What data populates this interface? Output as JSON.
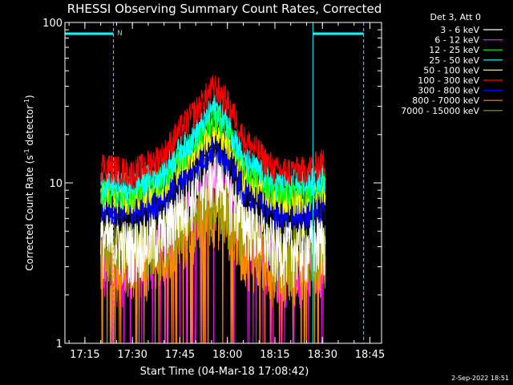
{
  "chart_data": {
    "type": "line",
    "title": "RHESSI Observing Summary Count Rates, Corrected",
    "xlabel": "Start Time (04-Mar-18 17:08:42)",
    "ylabel_main": "Corrected Count Rate (s",
    "ylabel_sup1": "-1",
    "ylabel_mid": " detector",
    "ylabel_sup2": "-1",
    "ylabel_end": ")",
    "yscale": "log",
    "ylim": [
      1,
      100
    ],
    "xlim": [
      "17:08:42",
      "18:48:40"
    ],
    "x_ticks": [
      "17:15",
      "17:30",
      "17:45",
      "18:00",
      "18:15",
      "18:30",
      "18:45"
    ],
    "y_ticks": [
      "1",
      "10",
      "100"
    ],
    "legend_header": "Det 3, Att 0",
    "legend_position": "top-right",
    "timestamp": "2-Sep-2022 18:51",
    "night_marker": "N",
    "series": [
      {
        "name": "3 - 6 keV",
        "color": "#ffffff",
        "times": [
          "17:20",
          "17:30",
          "17:40",
          "17:50",
          "17:56",
          "18:00",
          "18:05",
          "18:15",
          "18:25",
          "18:30"
        ],
        "values": [
          4.5,
          4.0,
          5.0,
          9.0,
          12.0,
          9.0,
          6.0,
          4.0,
          4.0,
          4.5
        ]
      },
      {
        "name": "6 - 12 keV",
        "color": "#ff00ff",
        "times": [
          "17:20",
          "17:30",
          "17:40",
          "17:50",
          "17:56",
          "18:00",
          "18:05",
          "18:15",
          "18:25",
          "18:30"
        ],
        "values": [
          3.0,
          3.0,
          4.0,
          7.0,
          9.5,
          8.0,
          5.0,
          3.0,
          3.0,
          3.5
        ]
      },
      {
        "name": "12 - 25 keV",
        "color": "#00ff00",
        "times": [
          "17:20",
          "17:30",
          "17:40",
          "17:50",
          "17:56",
          "18:00",
          "18:05",
          "18:15",
          "18:25",
          "18:30"
        ],
        "values": [
          9.0,
          8.5,
          11.0,
          18.0,
          27.0,
          22.0,
          13.0,
          9.0,
          9.0,
          10.0
        ]
      },
      {
        "name": "25 - 50 keV",
        "color": "#00ffff",
        "times": [
          "17:20",
          "17:30",
          "17:40",
          "17:50",
          "17:56",
          "18:00",
          "18:05",
          "18:15",
          "18:25",
          "18:30"
        ],
        "values": [
          10.0,
          9.5,
          12.0,
          20.0,
          30.0,
          24.0,
          14.0,
          10.0,
          10.0,
          11.0
        ]
      },
      {
        "name": "50 - 100 keV",
        "color": "#ffff00",
        "times": [
          "17:20",
          "17:30",
          "17:40",
          "17:50",
          "17:56",
          "18:00",
          "18:05",
          "18:15",
          "18:25",
          "18:30"
        ],
        "values": [
          8.5,
          8.0,
          10.0,
          16.0,
          22.0,
          18.0,
          11.0,
          8.0,
          8.0,
          9.0
        ]
      },
      {
        "name": "100 - 300 keV",
        "color": "#ff0000",
        "times": [
          "17:20",
          "17:30",
          "17:40",
          "17:50",
          "17:56",
          "18:00",
          "18:05",
          "18:15",
          "18:25",
          "18:30"
        ],
        "values": [
          13.0,
          11.5,
          15.0,
          28.0,
          40.0,
          32.0,
          19.0,
          12.0,
          12.0,
          13.5
        ]
      },
      {
        "name": "300 - 800 keV",
        "color": "#0000ff",
        "times": [
          "17:20",
          "17:30",
          "17:40",
          "17:50",
          "17:56",
          "18:00",
          "18:05",
          "18:15",
          "18:25",
          "18:30"
        ],
        "values": [
          7.0,
          6.5,
          8.0,
          13.0,
          17.0,
          14.0,
          9.0,
          6.5,
          6.5,
          7.0
        ]
      },
      {
        "name": "800 - 7000 keV",
        "color": "#ff8c00",
        "times": [
          "17:20",
          "17:30",
          "17:40",
          "17:50",
          "17:56",
          "18:00",
          "18:05",
          "18:15",
          "18:25",
          "18:30"
        ],
        "values": [
          3.5,
          3.0,
          3.5,
          5.5,
          7.0,
          6.0,
          4.0,
          3.0,
          3.0,
          3.5
        ]
      },
      {
        "name": "7000 - 15000 keV",
        "color": "#9aa000",
        "times": [
          "17:20",
          "17:30",
          "17:40",
          "17:50",
          "17:56",
          "18:00",
          "18:05",
          "18:15",
          "18:25",
          "18:30"
        ],
        "values": [
          4.0,
          3.8,
          4.5,
          6.5,
          8.0,
          7.0,
          5.0,
          3.8,
          3.8,
          4.2
        ]
      }
    ],
    "night_intervals": [
      [
        "17:08:42",
        "17:24"
      ],
      [
        "18:27",
        "18:43"
      ]
    ]
  }
}
